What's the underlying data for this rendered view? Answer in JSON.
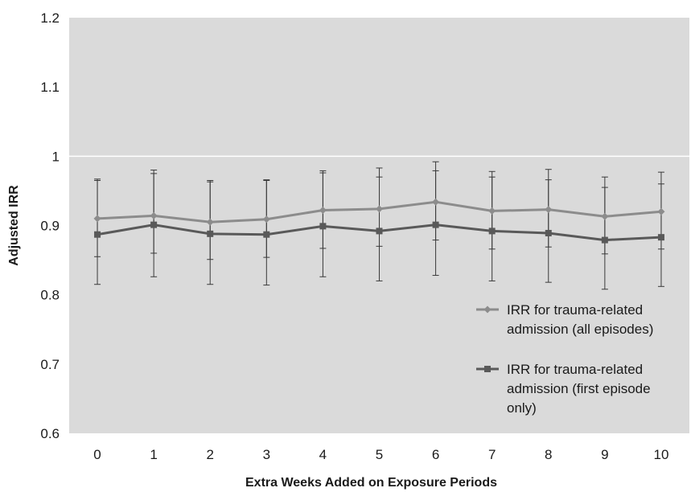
{
  "chart_data": {
    "type": "line",
    "title": "",
    "xlabel": "Extra Weeks Added on Exposure Periods",
    "ylabel": "Adjusted IRR",
    "categories": [
      0,
      1,
      2,
      3,
      4,
      5,
      6,
      7,
      8,
      9,
      10
    ],
    "ylim": [
      0.6,
      1.2
    ],
    "yticks": [
      0.6,
      0.7,
      0.8,
      0.9,
      1,
      1.1,
      1.2
    ],
    "ytick_labels": [
      "0.6",
      "0.7",
      "0.8",
      "0.9",
      "1",
      "1.1",
      "1.2"
    ],
    "grid": false,
    "reference_line": 1,
    "plot_background": "#dadada",
    "legend_position": "lower-right inside plot",
    "series": [
      {
        "name": "IRR for trauma-related admission (all episodes)",
        "legend_lines": [
          "IRR for trauma-related",
          "admission (all episodes)"
        ],
        "marker": "diamond",
        "color": "#8c8c8c",
        "values": [
          0.91,
          0.914,
          0.905,
          0.909,
          0.922,
          0.924,
          0.934,
          0.921,
          0.923,
          0.913,
          0.92
        ],
        "upper": [
          0.967,
          0.98,
          0.965,
          0.966,
          0.979,
          0.983,
          0.992,
          0.978,
          0.981,
          0.97,
          0.977
        ],
        "lower": [
          0.855,
          0.86,
          0.851,
          0.854,
          0.867,
          0.87,
          0.879,
          0.866,
          0.869,
          0.859,
          0.866
        ]
      },
      {
        "name": "IRR for trauma-related admission (first episode only)",
        "legend_lines": [
          "IRR for trauma-related",
          "admission (first episode",
          "only)"
        ],
        "marker": "square",
        "color": "#595959",
        "values": [
          0.887,
          0.901,
          0.888,
          0.887,
          0.899,
          0.892,
          0.901,
          0.892,
          0.889,
          0.879,
          0.883
        ],
        "upper": [
          0.965,
          0.975,
          0.963,
          0.965,
          0.976,
          0.97,
          0.979,
          0.97,
          0.966,
          0.955,
          0.96
        ],
        "lower": [
          0.815,
          0.826,
          0.815,
          0.814,
          0.826,
          0.82,
          0.828,
          0.82,
          0.818,
          0.808,
          0.812
        ]
      }
    ]
  }
}
